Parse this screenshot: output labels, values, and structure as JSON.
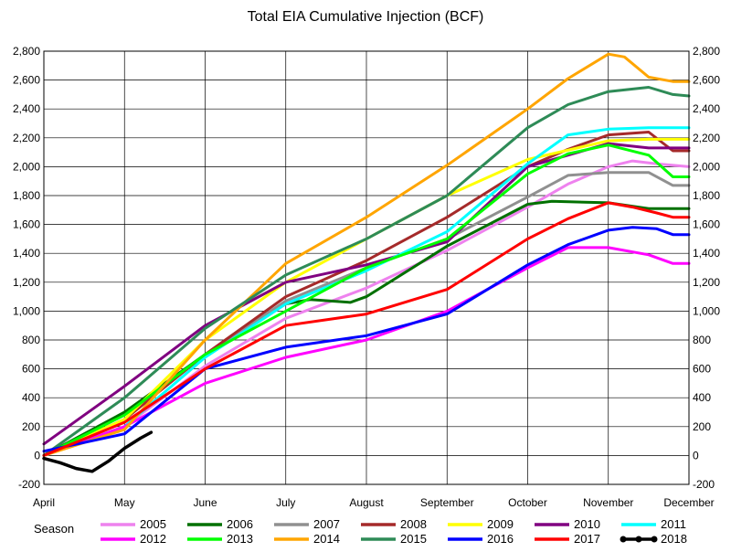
{
  "chart_data": {
    "type": "line",
    "title": "Total EIA Cumulative Injection (BCF)",
    "xlabel": "",
    "ylabel": "",
    "x_ticks": [
      "April",
      "May",
      "June",
      "July",
      "August",
      "September",
      "October",
      "November",
      "December"
    ],
    "ylim": [
      -200,
      2800
    ],
    "y_ticks": [
      "-200",
      "0",
      "200",
      "400",
      "600",
      "800",
      "1,000",
      "1,200",
      "1,400",
      "1,600",
      "1,800",
      "2,000",
      "2,200",
      "2,400",
      "2,600",
      "2,800"
    ],
    "y_tick_values": [
      -200,
      0,
      200,
      400,
      600,
      800,
      1000,
      1200,
      1400,
      1600,
      1800,
      2000,
      2200,
      2400,
      2600,
      2800
    ],
    "x_unit": "month index (April = 0, December = 8)",
    "grid": true,
    "legend_title": "Season",
    "legend_position": "bottom",
    "series": [
      {
        "name": "2005",
        "color": "#ee82ee",
        "width": 3,
        "x": [
          0,
          1,
          2,
          3,
          4,
          5,
          6,
          6.5,
          7,
          7.3,
          7.6,
          8
        ],
        "y": [
          0,
          200,
          620,
          950,
          1160,
          1420,
          1720,
          1880,
          2000,
          2040,
          2020,
          2000
        ]
      },
      {
        "name": "2006",
        "color": "#007000",
        "width": 3,
        "x": [
          0,
          1,
          2,
          3,
          3.3,
          3.8,
          4,
          5,
          6,
          6.3,
          7,
          7.5,
          8
        ],
        "y": [
          0,
          300,
          700,
          1050,
          1080,
          1060,
          1100,
          1450,
          1740,
          1760,
          1750,
          1710,
          1710
        ]
      },
      {
        "name": "2007",
        "color": "#909090",
        "width": 3,
        "x": [
          0,
          1,
          2,
          3,
          4,
          5,
          6,
          6.5,
          7,
          7.5,
          7.8,
          8
        ],
        "y": [
          0,
          250,
          700,
          1070,
          1300,
          1500,
          1790,
          1940,
          1960,
          1960,
          1870,
          1870
        ]
      },
      {
        "name": "2008",
        "color": "#a52a2a",
        "width": 3,
        "x": [
          0,
          1,
          2,
          3,
          4,
          5,
          6,
          6.5,
          7,
          7.5,
          7.8,
          8
        ],
        "y": [
          0,
          250,
          700,
          1100,
          1350,
          1650,
          2000,
          2120,
          2220,
          2240,
          2110,
          2110
        ]
      },
      {
        "name": "2009",
        "color": "#ffff00",
        "width": 3,
        "x": [
          0,
          1,
          2,
          3,
          4,
          5,
          6,
          7,
          7.5,
          8
        ],
        "y": [
          0,
          250,
          800,
          1200,
          1500,
          1800,
          2050,
          2180,
          2190,
          2190
        ]
      },
      {
        "name": "2010",
        "color": "#800080",
        "width": 3,
        "x": [
          0,
          1,
          2,
          3,
          4,
          5,
          6,
          7,
          7.5,
          8
        ],
        "y": [
          80,
          480,
          900,
          1200,
          1320,
          1480,
          2000,
          2160,
          2130,
          2130
        ]
      },
      {
        "name": "2011",
        "color": "#00ffff",
        "width": 3,
        "x": [
          0,
          1,
          2,
          3,
          4,
          5,
          6,
          6.5,
          7,
          7.5,
          8
        ],
        "y": [
          0,
          200,
          680,
          1050,
          1280,
          1550,
          2020,
          2220,
          2260,
          2270,
          2270
        ]
      },
      {
        "name": "2012",
        "color": "#ff00ff",
        "width": 3,
        "x": [
          0,
          1,
          2,
          3,
          4,
          5,
          6,
          6.5,
          7,
          7.5,
          7.8,
          8
        ],
        "y": [
          0,
          200,
          500,
          680,
          800,
          1000,
          1300,
          1440,
          1440,
          1390,
          1330,
          1330
        ]
      },
      {
        "name": "2013",
        "color": "#00ff00",
        "width": 3,
        "x": [
          0,
          1,
          2,
          3,
          4,
          5,
          6,
          6.5,
          7,
          7.5,
          7.8,
          8
        ],
        "y": [
          0,
          280,
          700,
          1000,
          1300,
          1500,
          1950,
          2090,
          2150,
          2080,
          1930,
          1930
        ]
      },
      {
        "name": "2014",
        "color": "#ffa500",
        "width": 3,
        "x": [
          0,
          1,
          2,
          3,
          4,
          5,
          6,
          6.5,
          7,
          7.2,
          7.5,
          7.8,
          8
        ],
        "y": [
          0,
          180,
          800,
          1330,
          1650,
          2010,
          2400,
          2610,
          2780,
          2760,
          2620,
          2590,
          2590
        ]
      },
      {
        "name": "2015",
        "color": "#2e8b57",
        "width": 3,
        "x": [
          0,
          1,
          2,
          3,
          4,
          5,
          6,
          6.5,
          7,
          7.5,
          7.8,
          8
        ],
        "y": [
          0,
          400,
          880,
          1250,
          1500,
          1800,
          2270,
          2430,
          2520,
          2550,
          2500,
          2490
        ]
      },
      {
        "name": "2016",
        "color": "#0000ff",
        "width": 3,
        "x": [
          0,
          1,
          2,
          3,
          4,
          5,
          6,
          6.5,
          7,
          7.3,
          7.6,
          7.8,
          8
        ],
        "y": [
          30,
          150,
          600,
          750,
          830,
          980,
          1320,
          1460,
          1560,
          1580,
          1570,
          1530,
          1530
        ]
      },
      {
        "name": "2017",
        "color": "#ff0000",
        "width": 3,
        "x": [
          0,
          1,
          2,
          3,
          4,
          5,
          6,
          6.5,
          7,
          7.3,
          7.6,
          7.8,
          8
        ],
        "y": [
          0,
          230,
          600,
          900,
          980,
          1150,
          1500,
          1640,
          1750,
          1720,
          1680,
          1650,
          1650
        ]
      },
      {
        "name": "2018",
        "color": "#000000",
        "width": 3.5,
        "marker": true,
        "x": [
          0,
          0.2,
          0.4,
          0.6,
          0.8,
          1,
          1.2,
          1.33
        ],
        "y": [
          -20,
          -50,
          -90,
          -110,
          -40,
          50,
          120,
          160
        ]
      }
    ]
  }
}
